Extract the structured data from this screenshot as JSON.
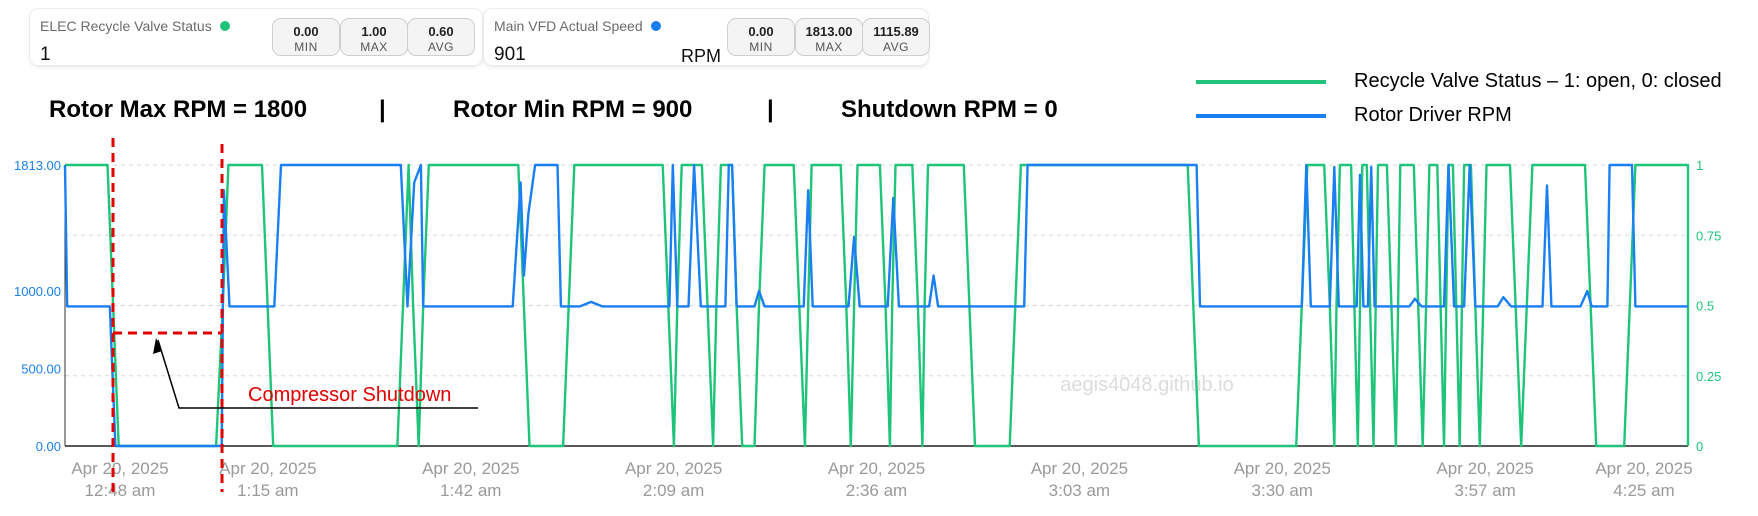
{
  "cards": [
    {
      "label": "ELEC Recycle Valve Status",
      "dot_color": "#1fc47a",
      "value": "1",
      "unit": "",
      "stats": [
        {
          "value": "0.00",
          "caption": "MIN"
        },
        {
          "value": "1.00",
          "caption": "MAX"
        },
        {
          "value": "0.60",
          "caption": "AVG"
        }
      ]
    },
    {
      "label": "Main VFD Actual Speed",
      "dot_color": "#1a7ff0",
      "value": "901",
      "unit": "RPM",
      "stats": [
        {
          "value": "0.00",
          "caption": "MIN"
        },
        {
          "value": "1813.00",
          "caption": "MAX"
        },
        {
          "value": "1115.89",
          "caption": "AVG"
        }
      ]
    }
  ],
  "headlines": {
    "max": "Rotor Max RPM = 1800",
    "sep1": "|",
    "min": "Rotor Min RPM = 900",
    "sep2": "|",
    "shutdown": "Shutdown RPM = 0"
  },
  "legend": [
    {
      "label": "Recycle Valve Status – 1: open, 0: closed",
      "color": "#1fc47a"
    },
    {
      "label": "Rotor Driver RPM",
      "color": "#1a7ff0"
    }
  ],
  "annotation": {
    "text": "Compressor Shutdown",
    "color": "#e00000"
  },
  "watermark": "aegis4048.github.io",
  "chart_data": {
    "type": "line",
    "x_range": [
      "2025-04-20 12:48",
      "2025-04-20 04:25"
    ],
    "x_ticks": [
      {
        "date": "Apr 20, 2025",
        "time": "12:48 am"
      },
      {
        "date": "Apr 20, 2025",
        "time": "1:15 am"
      },
      {
        "date": "Apr 20, 2025",
        "time": "1:42 am"
      },
      {
        "date": "Apr 20, 2025",
        "time": "2:09 am"
      },
      {
        "date": "Apr 20, 2025",
        "time": "2:36 am"
      },
      {
        "date": "Apr 20, 2025",
        "time": "3:03 am"
      },
      {
        "date": "Apr 20, 2025",
        "time": "3:30 am"
      },
      {
        "date": "Apr 20, 2025",
        "time": "3:57 am"
      },
      {
        "date": "Apr 20, 2025",
        "time": "4:25 am"
      }
    ],
    "y_left": {
      "ticks": [
        "1813.00",
        "1000.00",
        "500.00",
        "0.00"
      ],
      "values": [
        1813,
        1000,
        500,
        0
      ],
      "range": [
        0,
        1813
      ],
      "color": "#1a7ff0"
    },
    "y_right": {
      "ticks": [
        "1",
        "0.75",
        "0.5",
        "0.25",
        "0"
      ],
      "values": [
        1,
        0.75,
        0.5,
        0.25,
        0
      ],
      "range": [
        0,
        1
      ],
      "color": "#1fc47a"
    },
    "grid": true,
    "series": [
      {
        "name": "Recycle Valve Status – 1: open, 0: closed",
        "axis": "right",
        "color": "#1fc47a",
        "points": [
          [
            0,
            1
          ],
          [
            38,
            1
          ],
          [
            43,
            0.5
          ],
          [
            48,
            0
          ],
          [
            135,
            0
          ],
          [
            141,
            0.5
          ],
          [
            146,
            1
          ],
          [
            176,
            1
          ],
          [
            181,
            0.5
          ],
          [
            186,
            0
          ],
          [
            297,
            0
          ],
          [
            302,
            0.5
          ],
          [
            307,
            1
          ],
          [
            311,
            0.5
          ],
          [
            316,
            0
          ],
          [
            320,
            0.5
          ],
          [
            325,
            1
          ],
          [
            405,
            1
          ],
          [
            410,
            0.5
          ],
          [
            415,
            0
          ],
          [
            445,
            0
          ],
          [
            450,
            0.5
          ],
          [
            455,
            1
          ],
          [
            534,
            1
          ],
          [
            539,
            0.5
          ],
          [
            544,
            0
          ],
          [
            547,
            0.5
          ],
          [
            551,
            1
          ],
          [
            569,
            1
          ],
          [
            574,
            0.5
          ],
          [
            579,
            0
          ],
          [
            582,
            0.5
          ],
          [
            586,
            1
          ],
          [
            596,
            1
          ],
          [
            600,
            0.5
          ],
          [
            605,
            0
          ],
          [
            616,
            0
          ],
          [
            620,
            0.5
          ],
          [
            625,
            1
          ],
          [
            651,
            1
          ],
          [
            656,
            0.5
          ],
          [
            661,
            0
          ],
          [
            664,
            0.5
          ],
          [
            667,
            1
          ],
          [
            693,
            1
          ],
          [
            698,
            0.5
          ],
          [
            702,
            0
          ],
          [
            705,
            0.5
          ],
          [
            708,
            1
          ],
          [
            728,
            1
          ],
          [
            733,
            0.5
          ],
          [
            737,
            0
          ],
          [
            739,
            0.5
          ],
          [
            742,
            1
          ],
          [
            757,
            1
          ],
          [
            762,
            0.5
          ],
          [
            766,
            0
          ],
          [
            768,
            0.5
          ],
          [
            771,
            1
          ],
          [
            803,
            1
          ],
          [
            808,
            0.5
          ],
          [
            813,
            0
          ],
          [
            844,
            0
          ],
          [
            849,
            0.5
          ],
          [
            854,
            1
          ],
          [
            1003,
            1
          ],
          [
            1008,
            0.5
          ],
          [
            1013,
            0
          ],
          [
            1100,
            0
          ],
          [
            1105,
            0.5
          ],
          [
            1110,
            1
          ],
          [
            1125,
            1
          ],
          [
            1130,
            0.5
          ],
          [
            1134,
            0
          ],
          [
            1136,
            0.5
          ],
          [
            1139,
            1
          ],
          [
            1149,
            1
          ],
          [
            1152,
            0.5
          ],
          [
            1155,
            0
          ],
          [
            1157,
            0.5
          ],
          [
            1159,
            1
          ],
          [
            1163,
            1
          ],
          [
            1166,
            0.5
          ],
          [
            1169,
            0
          ],
          [
            1171,
            0.5
          ],
          [
            1173,
            1
          ],
          [
            1181,
            1
          ],
          [
            1185,
            0.5
          ],
          [
            1189,
            0
          ],
          [
            1191,
            0.5
          ],
          [
            1193,
            1
          ],
          [
            1205,
            1
          ],
          [
            1209,
            0.5
          ],
          [
            1213,
            0
          ],
          [
            1216,
            0.5
          ],
          [
            1219,
            1
          ],
          [
            1226,
            1
          ],
          [
            1229,
            0.5
          ],
          [
            1232,
            0
          ],
          [
            1234,
            0.5
          ],
          [
            1236,
            1
          ],
          [
            1240,
            1
          ],
          [
            1243,
            0.5
          ],
          [
            1246,
            0
          ],
          [
            1248,
            0.5
          ],
          [
            1250,
            1
          ],
          [
            1256,
            1
          ],
          [
            1260,
            0.5
          ],
          [
            1264,
            0
          ],
          [
            1267,
            0.5
          ],
          [
            1270,
            1
          ],
          [
            1291,
            1
          ],
          [
            1296,
            0.5
          ],
          [
            1301,
            0
          ],
          [
            1306,
            0.5
          ],
          [
            1311,
            1
          ],
          [
            1358,
            1
          ],
          [
            1363,
            0.5
          ],
          [
            1368,
            0
          ],
          [
            1393,
            0
          ],
          [
            1398,
            0.5
          ],
          [
            1403,
            1
          ],
          [
            1450,
            1
          ],
          [
            1450,
            0
          ]
        ]
      },
      {
        "name": "Rotor Driver RPM",
        "axis": "left",
        "color": "#1a7ff0",
        "points": [
          [
            0,
            1813
          ],
          [
            2,
            901
          ],
          [
            40,
            901
          ],
          [
            45,
            0
          ],
          [
            140,
            0
          ],
          [
            142,
            1650
          ],
          [
            147,
            901
          ],
          [
            187,
            901
          ],
          [
            193,
            1813
          ],
          [
            300,
            1813
          ],
          [
            306,
            901
          ],
          [
            312,
            1700
          ],
          [
            318,
            1813
          ],
          [
            320,
            901
          ],
          [
            400,
            901
          ],
          [
            407,
            1700
          ],
          [
            410,
            1100
          ],
          [
            414,
            1500
          ],
          [
            420,
            1813
          ],
          [
            440,
            1813
          ],
          [
            443,
            901
          ],
          [
            460,
            901
          ],
          [
            470,
            930
          ],
          [
            480,
            901
          ],
          [
            540,
            901
          ],
          [
            543,
            1813
          ],
          [
            547,
            901
          ],
          [
            557,
            901
          ],
          [
            562,
            1813
          ],
          [
            568,
            901
          ],
          [
            590,
            901
          ],
          [
            593,
            1813
          ],
          [
            596,
            1813
          ],
          [
            600,
            901
          ],
          [
            616,
            901
          ],
          [
            620,
            1000
          ],
          [
            625,
            901
          ],
          [
            660,
            901
          ],
          [
            664,
            1650
          ],
          [
            668,
            901
          ],
          [
            700,
            901
          ],
          [
            705,
            1350
          ],
          [
            710,
            901
          ],
          [
            735,
            901
          ],
          [
            740,
            1600
          ],
          [
            745,
            901
          ],
          [
            772,
            901
          ],
          [
            776,
            1100
          ],
          [
            780,
            901
          ],
          [
            857,
            901
          ],
          [
            860,
            1813
          ],
          [
            1011,
            1813
          ],
          [
            1014,
            901
          ],
          [
            1105,
            901
          ],
          [
            1109,
            1813
          ],
          [
            1113,
            901
          ],
          [
            1130,
            901
          ],
          [
            1134,
            1800
          ],
          [
            1138,
            901
          ],
          [
            1154,
            901
          ],
          [
            1157,
            1750
          ],
          [
            1160,
            901
          ],
          [
            1164,
            901
          ],
          [
            1167,
            1800
          ],
          [
            1170,
            901
          ],
          [
            1201,
            901
          ],
          [
            1206,
            950
          ],
          [
            1212,
            901
          ],
          [
            1232,
            901
          ],
          [
            1236,
            1813
          ],
          [
            1241,
            901
          ],
          [
            1250,
            901
          ],
          [
            1255,
            1813
          ],
          [
            1260,
            901
          ],
          [
            1280,
            901
          ],
          [
            1285,
            960
          ],
          [
            1292,
            901
          ],
          [
            1320,
            901
          ],
          [
            1324,
            1680
          ],
          [
            1328,
            901
          ],
          [
            1354,
            901
          ],
          [
            1360,
            1000
          ],
          [
            1364,
            901
          ],
          [
            1378,
            901
          ],
          [
            1380,
            1813
          ],
          [
            1400,
            1813
          ],
          [
            1403,
            901
          ],
          [
            1450,
            901
          ]
        ]
      }
    ]
  }
}
